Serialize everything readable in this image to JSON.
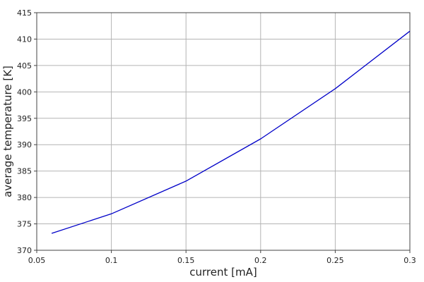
{
  "chart_data": {
    "type": "line",
    "title": "",
    "xlabel": "current [mA]",
    "ylabel": "average temperature [K]",
    "xlim": [
      0.05,
      0.3
    ],
    "ylim": [
      370,
      415
    ],
    "x_ticks": [
      0.05,
      0.1,
      0.15,
      0.2,
      0.25,
      0.3
    ],
    "x_tick_labels": [
      "0.05",
      "0.1",
      "0.15",
      "0.2",
      "0.25",
      "0.3"
    ],
    "y_ticks": [
      370,
      375,
      380,
      385,
      390,
      395,
      400,
      405,
      410,
      415
    ],
    "y_tick_labels": [
      "370",
      "375",
      "380",
      "385",
      "390",
      "395",
      "400",
      "405",
      "410",
      "415"
    ],
    "grid": true,
    "legend": "none",
    "series": [
      {
        "color": "#0000c8",
        "x": [
          0.06,
          0.1,
          0.15,
          0.2,
          0.25,
          0.3
        ],
        "y": [
          373.2,
          376.9,
          383.1,
          391.1,
          400.6,
          411.5
        ]
      }
    ]
  }
}
